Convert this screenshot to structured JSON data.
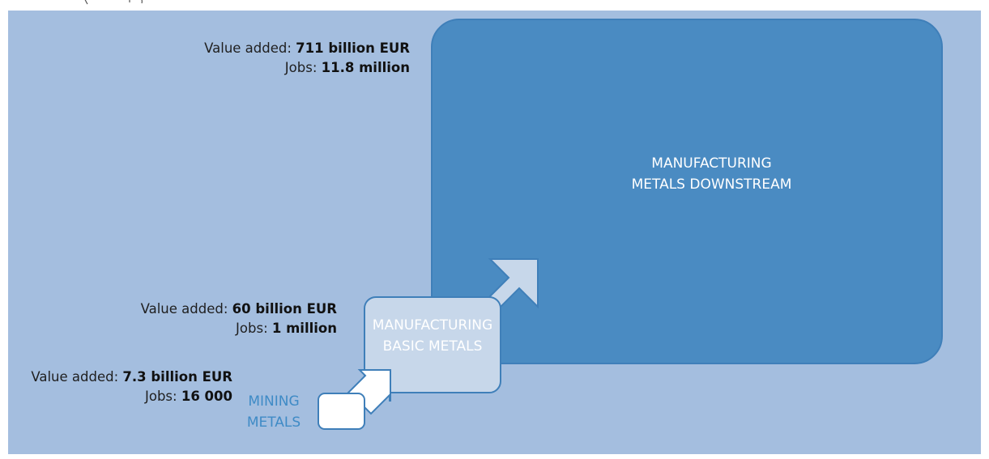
{
  "colors": {
    "background": "#a4bedf",
    "downstream_box": "#4a8bc2",
    "box_border": "#3f7fb9",
    "basic_box": "#c7d7ea",
    "mining_box": "#ffffff",
    "mining_text": "#3f8bc6"
  },
  "stages": {
    "downstream": {
      "label_line1": "MANUFACTURING",
      "label_line2": "METALS DOWNSTREAM",
      "value_added_label": "Value added: ",
      "value_added": "711 billion EUR",
      "jobs_label": "Jobs: ",
      "jobs": "11.8 million"
    },
    "basic": {
      "label_line1": "MANUFACTURING",
      "label_line2": "BASIC METALS",
      "value_added_label": "Value added: ",
      "value_added": "60 billion EUR",
      "jobs_label": "Jobs: ",
      "jobs": "1 million"
    },
    "mining": {
      "label_line1": "MINING",
      "label_line2": "METALS",
      "value_added_label": "Value added: ",
      "value_added": "7.3 billion EUR",
      "jobs_label": "Jobs: ",
      "jobs": "16 000"
    }
  },
  "arrows": [
    "mining-to-basic",
    "basic-to-downstream"
  ]
}
